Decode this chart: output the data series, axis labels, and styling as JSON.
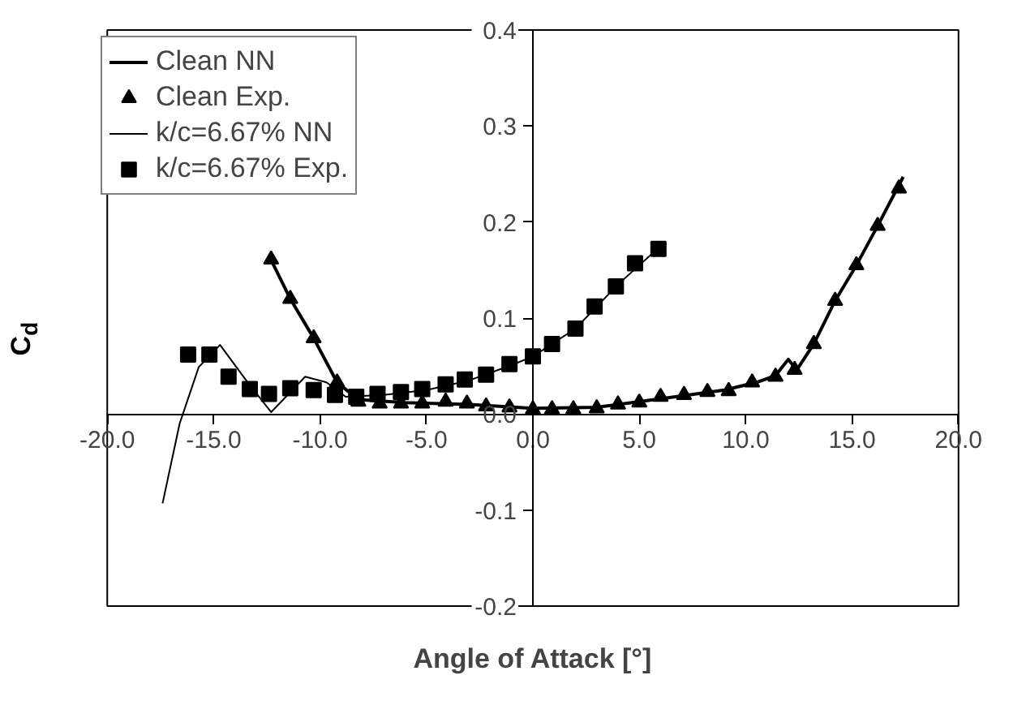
{
  "chart_data": {
    "type": "line",
    "xlabel": "Angle of Attack [°]",
    "ylabel": "C$_{d}$",
    "xlim": [
      -20,
      20
    ],
    "ylim": [
      -0.2,
      0.4
    ],
    "xticks": [
      {
        "value": -20,
        "label": "-20.0"
      },
      {
        "value": -15,
        "label": "-15.0"
      },
      {
        "value": -10,
        "label": "-10.0"
      },
      {
        "value": -5,
        "label": "-5.0"
      },
      {
        "value": 0,
        "label": "0.0"
      },
      {
        "value": 5,
        "label": "5.0"
      },
      {
        "value": 10,
        "label": "10.0"
      },
      {
        "value": 15,
        "label": "15.0"
      },
      {
        "value": 20,
        "label": "20.0"
      }
    ],
    "yticks": [
      {
        "value": -0.2,
        "label": "-0.2"
      },
      {
        "value": -0.1,
        "label": "-0.1"
      },
      {
        "value": 0,
        "label": "0.0"
      },
      {
        "value": 0.1,
        "label": "0.1"
      },
      {
        "value": 0.2,
        "label": "0.2"
      },
      {
        "value": 0.3,
        "label": "0.3"
      },
      {
        "value": 0.4,
        "label": "0.4"
      }
    ],
    "grid": false,
    "legend": "top left",
    "series": [
      {
        "name": "Clean NN",
        "marker": "none",
        "color": "#000000",
        "x": [
          -12.4,
          -11.4,
          -10.3,
          -9.2,
          -8.2,
          -6,
          -3,
          0,
          3,
          6,
          9,
          10.5,
          11.4,
          12.0,
          12.4,
          13.2,
          14.2,
          15.2,
          16.2,
          17.4
        ],
        "values": [
          0.165,
          0.12,
          0.079,
          0.033,
          0.015,
          0.012,
          0.01,
          0.006,
          0.007,
          0.016,
          0.025,
          0.033,
          0.04,
          0.057,
          0.046,
          0.073,
          0.118,
          0.155,
          0.196,
          0.247
        ]
      },
      {
        "name": "Clean Exp.",
        "type": "scatter",
        "marker": "triangle",
        "color": "#000000",
        "x": [
          -12.3,
          -11.4,
          -10.3,
          -9.2,
          -8.2,
          -7.2,
          -6.2,
          -5.2,
          -4.1,
          -3.1,
          -2.2,
          -1.1,
          0,
          0.9,
          1.9,
          3.0,
          4.0,
          5.0,
          6.0,
          7.1,
          8.2,
          9.2,
          10.3,
          11.4,
          12.3,
          13.2,
          14.2,
          15.2,
          16.2,
          17.2
        ],
        "values": [
          0.161,
          0.12,
          0.079,
          0.033,
          0.013,
          0.011,
          0.011,
          0.011,
          0.013,
          0.011,
          0.008,
          0.007,
          0.005,
          0.005,
          0.005,
          0.006,
          0.01,
          0.012,
          0.018,
          0.02,
          0.023,
          0.024,
          0.033,
          0.039,
          0.046,
          0.073,
          0.118,
          0.155,
          0.196,
          0.235
        ]
      },
      {
        "name": "k/c=6.67% NN",
        "marker": "none",
        "color": "#000000",
        "x": [
          -17.4,
          -16.6,
          -15.7,
          -14.7,
          -13.4,
          -12.3,
          -10.7,
          -9.7,
          -8.8,
          -7,
          -5,
          -3,
          -1,
          0,
          2,
          4,
          6.1
        ],
        "values": [
          -0.093,
          -0.01,
          0.049,
          0.072,
          0.033,
          0.002,
          0.039,
          0.033,
          0.018,
          0.02,
          0.025,
          0.035,
          0.051,
          0.06,
          0.089,
          0.135,
          0.177
        ]
      },
      {
        "name": "k/c=6.67% Exp.",
        "type": "scatter",
        "marker": "square",
        "color": "#000000",
        "x": [
          -16.2,
          -15.2,
          -14.3,
          -13.3,
          -12.4,
          -11.4,
          -10.3,
          -9.3,
          -8.3,
          -7.3,
          -6.2,
          -5.2,
          -4.1,
          -3.2,
          -2.2,
          -1.1,
          0,
          0.9,
          2.0,
          2.9,
          3.9,
          4.8,
          5.9
        ],
        "values": [
          0.062,
          0.062,
          0.039,
          0.026,
          0.021,
          0.027,
          0.025,
          0.02,
          0.018,
          0.021,
          0.023,
          0.026,
          0.031,
          0.036,
          0.041,
          0.052,
          0.06,
          0.073,
          0.089,
          0.112,
          0.133,
          0.157,
          0.172
        ]
      }
    ]
  }
}
